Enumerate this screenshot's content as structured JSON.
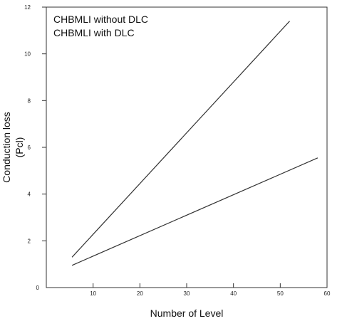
{
  "chart_data": {
    "type": "line",
    "xlabel": "Number of Level",
    "ylabel": "Conduction loss",
    "ylabel_unit": "(Pcl)",
    "xlim": [
      0,
      60
    ],
    "ylim": [
      0,
      12
    ],
    "x_ticks": [
      10,
      20,
      30,
      40,
      50,
      60
    ],
    "y_ticks": [
      0,
      2,
      4,
      6,
      8,
      10,
      12
    ],
    "grid": false,
    "legend_position": "top-left",
    "legend": [
      "CHBMLI without DLC",
      "CHBMLI with DLC"
    ],
    "series": [
      {
        "name": "CHBMLI without DLC",
        "color": "#333333",
        "x": [
          5.5,
          52
        ],
        "y": [
          1.3,
          11.4
        ]
      },
      {
        "name": "CHBMLI with DLC",
        "color": "#333333",
        "x": [
          5.5,
          58
        ],
        "y": [
          0.95,
          5.55
        ]
      }
    ]
  }
}
